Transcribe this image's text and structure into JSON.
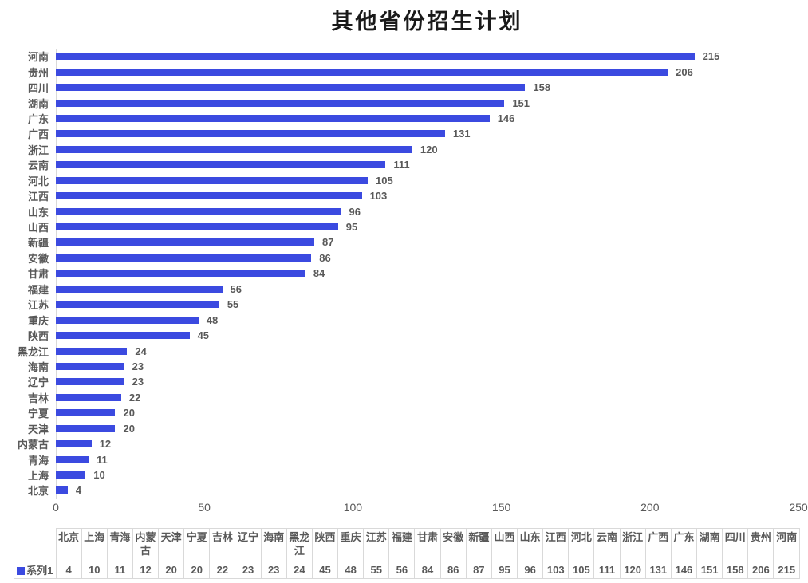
{
  "chart_data": {
    "type": "bar",
    "orientation": "horizontal",
    "title": "其他省份招生计划",
    "series_name": "系列1",
    "categories": [
      "河南",
      "贵州",
      "四川",
      "湖南",
      "广东",
      "广西",
      "浙江",
      "云南",
      "河北",
      "江西",
      "山东",
      "山西",
      "新疆",
      "安徽",
      "甘肃",
      "福建",
      "江苏",
      "重庆",
      "陕西",
      "黑龙江",
      "海南",
      "辽宁",
      "吉林",
      "宁夏",
      "天津",
      "内蒙古",
      "青海",
      "上海",
      "北京"
    ],
    "values": [
      215,
      206,
      158,
      151,
      146,
      131,
      120,
      111,
      105,
      103,
      96,
      95,
      87,
      86,
      84,
      56,
      55,
      48,
      45,
      24,
      23,
      23,
      22,
      20,
      20,
      12,
      11,
      10,
      4
    ],
    "xlim": [
      0,
      250
    ],
    "x_ticks": [
      "0",
      "50",
      "100",
      "150",
      "200",
      "250"
    ],
    "grid": "off",
    "legend_position": "table-row-label",
    "colors": {
      "bar": "#3b4ae0",
      "label_text": "#595959",
      "title_text": "#1a1a1a",
      "axis_line": "#d9d9d9",
      "table_border": "#d9d9d9"
    },
    "table": {
      "row_label": "系列1",
      "columns": [
        "北京",
        "上海",
        "青海",
        "内蒙古",
        "天津",
        "宁夏",
        "吉林",
        "辽宁",
        "海南",
        "黑龙江",
        "陕西",
        "重庆",
        "江苏",
        "福建",
        "甘肃",
        "安徽",
        "新疆",
        "山西",
        "山东",
        "江西",
        "河北",
        "云南",
        "浙江",
        "广西",
        "广东",
        "湖南",
        "四川",
        "贵州",
        "河南"
      ],
      "values": [
        4,
        10,
        11,
        12,
        20,
        20,
        22,
        23,
        23,
        24,
        45,
        48,
        55,
        56,
        84,
        86,
        87,
        95,
        96,
        103,
        105,
        111,
        120,
        131,
        146,
        151,
        158,
        206,
        215
      ]
    }
  }
}
